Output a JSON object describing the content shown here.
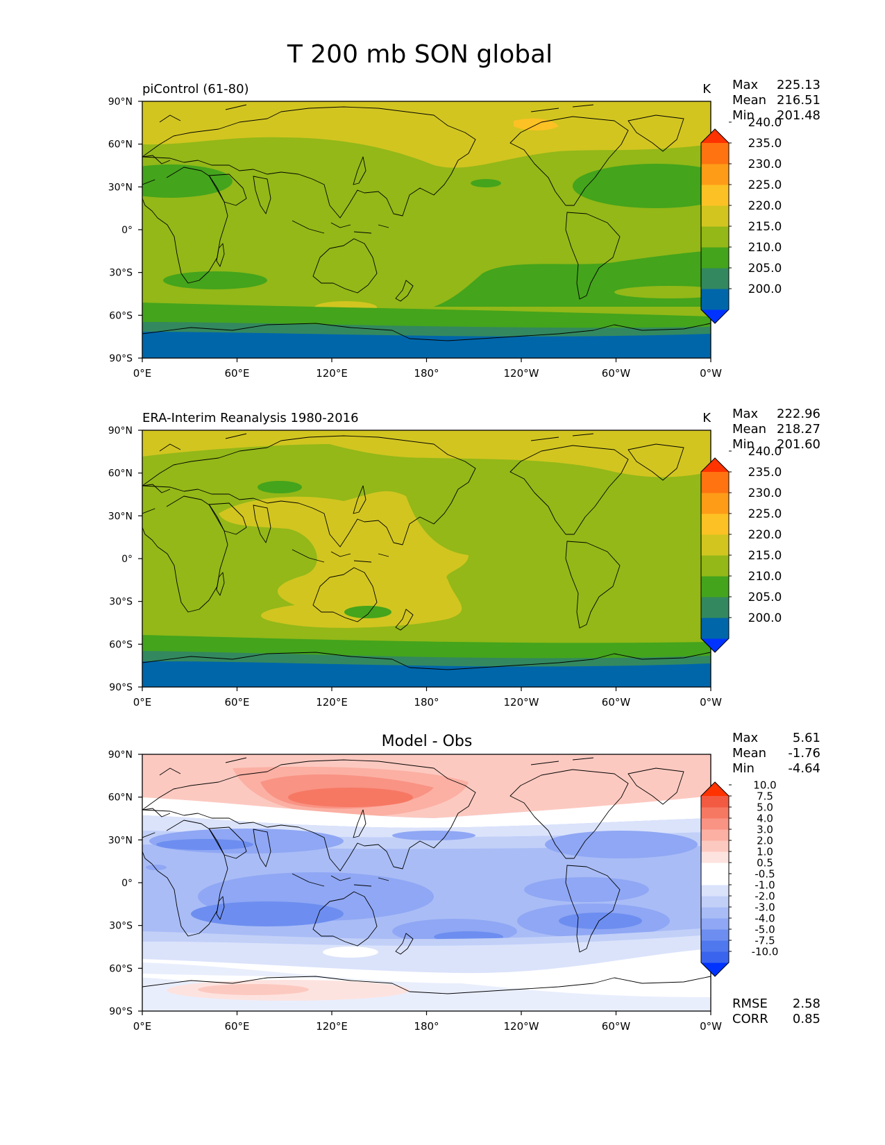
{
  "title": "T 200 mb SON global",
  "axes": {
    "lat_labels": [
      "90°N",
      "60°N",
      "30°N",
      "0°",
      "30°S",
      "60°S",
      "90°S"
    ],
    "lon_labels": [
      "0°E",
      "60°E",
      "120°E",
      "180°",
      "120°W",
      "60°W",
      "0°W"
    ]
  },
  "panels": [
    {
      "id": "model",
      "title_left": "piControl (61-80)",
      "title_center": "",
      "units": "K",
      "stats": [
        {
          "label": "Max",
          "value": "225.13"
        },
        {
          "label": "Mean",
          "value": "216.51"
        },
        {
          "label": "Min",
          "value": "201.48"
        }
      ],
      "colorbar": {
        "colors": [
          "#0033ff",
          "#0066aa",
          "#33885f",
          "#44a41c",
          "#93b818",
          "#d2c520",
          "#fcc124",
          "#fe9c18",
          "#ff7311",
          "#ff3300"
        ],
        "labels": [
          "200.0",
          "205.0",
          "210.0",
          "215.0",
          "220.0",
          "225.0",
          "230.0",
          "235.0",
          "240.0"
        ]
      },
      "extra_stats": []
    },
    {
      "id": "obs",
      "title_left": "ERA-Interim Reanalysis 1980-2016",
      "title_center": "",
      "units": "K",
      "stats": [
        {
          "label": "Max",
          "value": "222.96"
        },
        {
          "label": "Mean",
          "value": "218.27"
        },
        {
          "label": "Min",
          "value": "201.60"
        }
      ],
      "colorbar": {
        "colors": [
          "#0033ff",
          "#0066aa",
          "#33885f",
          "#44a41c",
          "#93b818",
          "#d2c520",
          "#fcc124",
          "#fe9c18",
          "#ff7311",
          "#ff3300"
        ],
        "labels": [
          "200.0",
          "205.0",
          "210.0",
          "215.0",
          "220.0",
          "225.0",
          "230.0",
          "235.0",
          "240.0"
        ]
      },
      "extra_stats": []
    },
    {
      "id": "diff",
      "title_left": "",
      "title_center": "Model - Obs",
      "units": "",
      "stats": [
        {
          "label": "Max",
          "value": "5.61"
        },
        {
          "label": "Mean",
          "value": "-1.76"
        },
        {
          "label": "Min",
          "value": "-4.64"
        }
      ],
      "colorbar": {
        "colors": [
          "#0033ff",
          "#3b64ee",
          "#5078ee",
          "#6d8ef0",
          "#8fa7f4",
          "#a9bcf6",
          "#c2d0f8",
          "#dbe3fb",
          "#ffffff",
          "#ffffff",
          "#fde3df",
          "#fcc9c0",
          "#fbb0a3",
          "#f99384",
          "#f67863",
          "#f25a41",
          "#ff3300"
        ],
        "labels": [
          "-10.0",
          "-7.5",
          "-5.0",
          "-4.0",
          "-3.0",
          "-2.0",
          "-1.0",
          "-0.5",
          "0.5",
          "1.0",
          "2.0",
          "3.0",
          "4.0",
          "5.0",
          "7.5",
          "10.0"
        ]
      },
      "extra_stats": [
        {
          "label": "RMSE",
          "value": "2.58"
        },
        {
          "label": "CORR",
          "value": "0.85"
        }
      ]
    }
  ]
}
